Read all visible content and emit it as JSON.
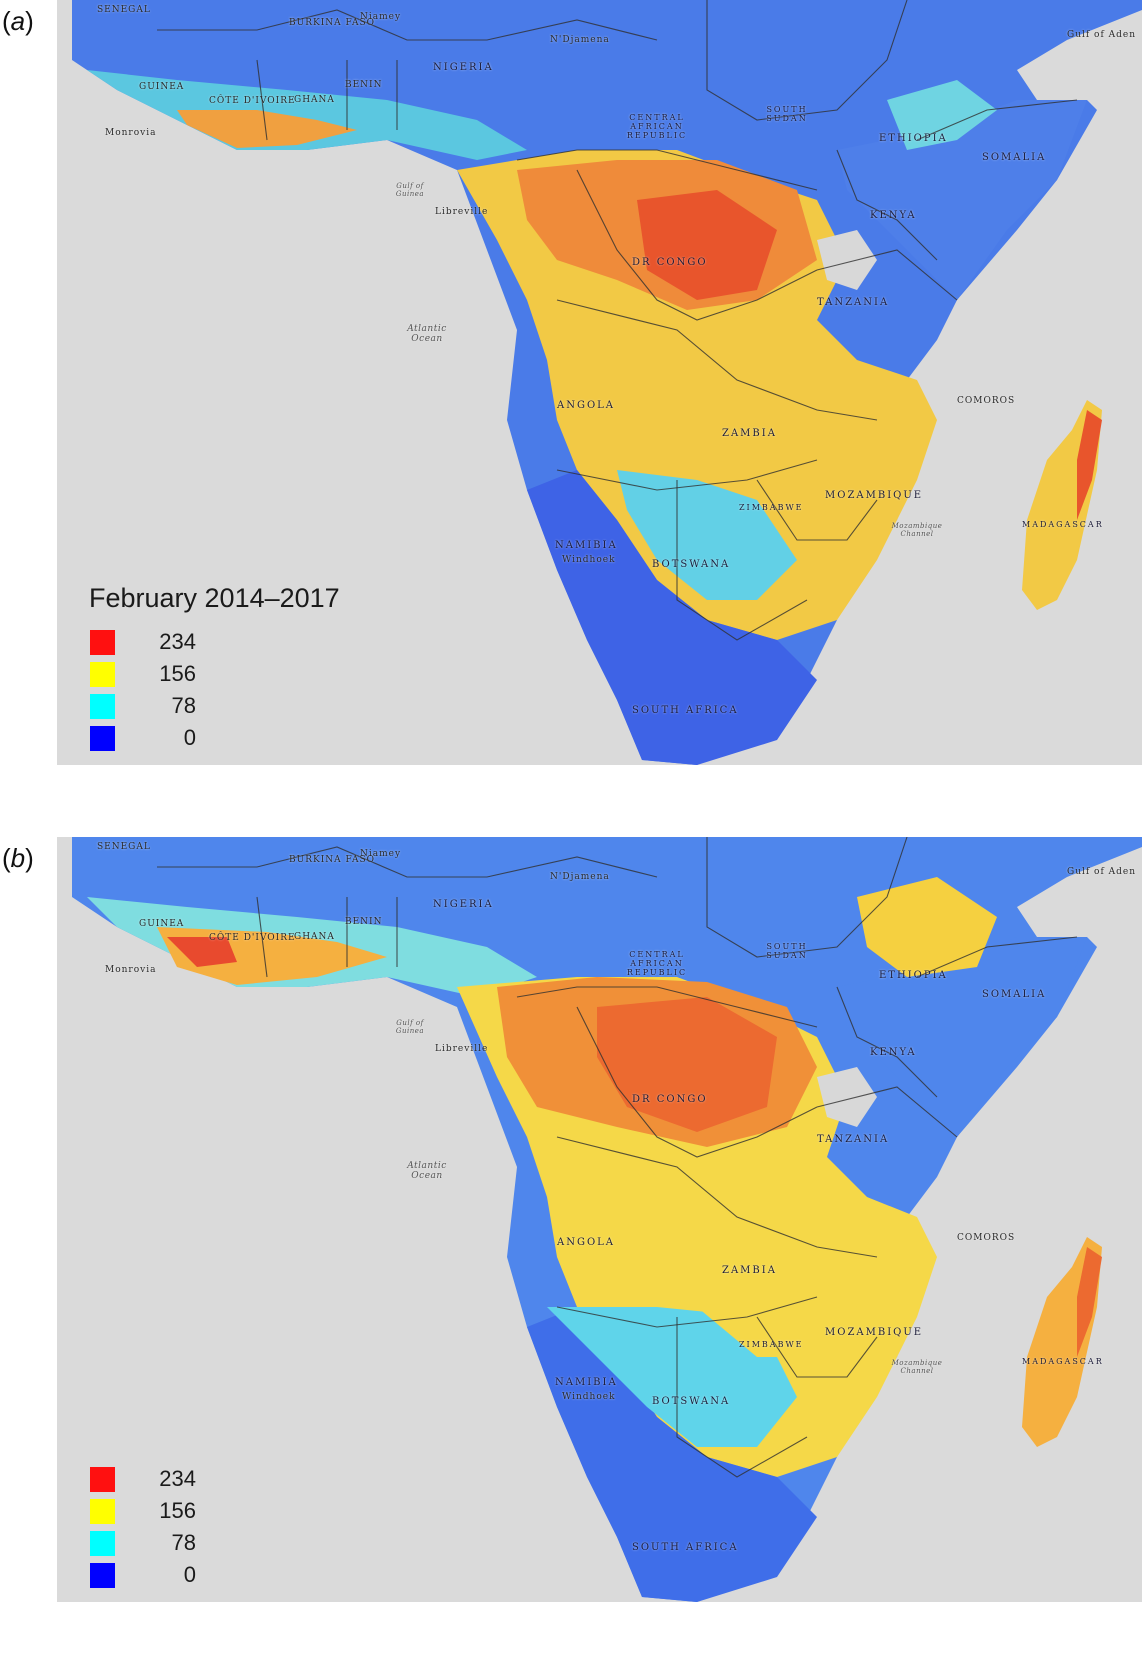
{
  "panels": [
    {
      "letter": "a",
      "period_label": "February 2014–2017",
      "legend": [
        {
          "value": "234",
          "color": "#ff1010"
        },
        {
          "value": "156",
          "color": "#ffff00"
        },
        {
          "value": "78",
          "color": "#00ffff"
        },
        {
          "value": "0",
          "color": "#0000ff"
        }
      ]
    },
    {
      "letter": "b",
      "period_label": "",
      "legend": [
        {
          "value": "234",
          "color": "#ff1010"
        },
        {
          "value": "156",
          "color": "#ffff00"
        },
        {
          "value": "78",
          "color": "#00ffff"
        },
        {
          "value": "0",
          "color": "#0000ff"
        }
      ]
    }
  ],
  "map_labels": {
    "senegal": "SENEGAL",
    "burkina": "BURKINA FASO",
    "niamey": "Niamey",
    "nigeria": "NIGERIA",
    "ndjamena": "N'Djamena",
    "guinea": "GUINEA",
    "ghana": "GHANA",
    "benin": "BENIN",
    "cote": "CÔTE D'IVOIRE",
    "monrovia": "Monrovia",
    "car": "CENTRAL AFRICAN REPUBLIC",
    "south_sudan": "SOUTH SUDAN",
    "ethiopia": "ETHIOPIA",
    "somalia": "SOMALIA",
    "kenya": "KENYA",
    "gulf_guinea": "Gulf of Guinea",
    "libreville": "Libreville",
    "drcongo": "DR CONGO",
    "tanzania": "TANZANIA",
    "atlantic": "Atlantic Ocean",
    "angola": "ANGOLA",
    "zambia": "ZAMBIA",
    "mozambique": "MOZAMBIQUE",
    "madagascar": "MADAGASCAR",
    "namibia": "NAMIBIA",
    "windhoek": "Windhoek",
    "botswana": "BOTSWANA",
    "zimbabwe": "ZIMBABWE",
    "comoros": "COMOROS",
    "mozambique_channel": "Mozambique Channel",
    "south_africa": "SOUTH AFRICA",
    "gulf_aden": "Gulf of Aden"
  }
}
